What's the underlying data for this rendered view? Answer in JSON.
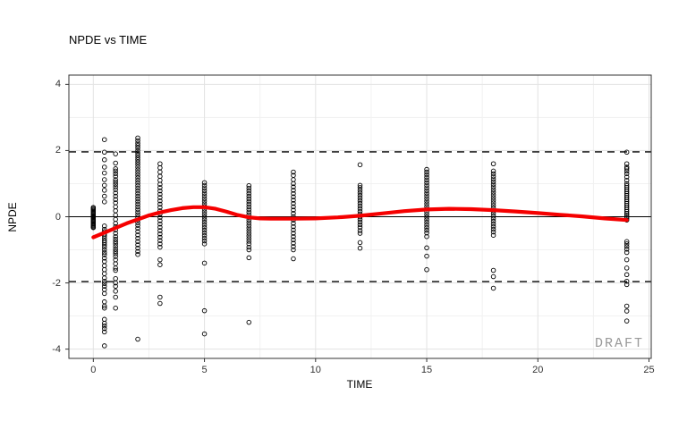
{
  "chart_data": {
    "type": "scatter",
    "title": "NPDE vs TIME",
    "xlabel": "TIME",
    "ylabel": "NPDE",
    "watermark": "DRAFT",
    "legend": "none",
    "grid": "on",
    "xlim": [
      -1.1,
      25.1
    ],
    "ylim": [
      -4.28,
      4.28
    ],
    "x_ticks": [
      0,
      5,
      10,
      15,
      20,
      25
    ],
    "y_ticks": [
      -4,
      -2,
      0,
      2,
      4
    ],
    "x_minor": [
      2.5,
      7.5,
      12.5,
      17.5,
      22.5
    ],
    "y_minor": [
      -3,
      -1,
      1,
      3
    ],
    "reference_lines": {
      "zero": 0,
      "upper_dashed": 1.96,
      "lower_dashed": -1.96
    },
    "colors": {
      "point": "#000000",
      "smooth_line": "#f50000",
      "reference_line": "#000000",
      "grid_major": "#e3e3e3",
      "grid_minor": "#f1f1f1",
      "panel_border": "#333333",
      "panel_bg": "#ffffff",
      "tick_text": "#333333",
      "watermark_text": "#999999"
    },
    "scatter_groups": [
      {
        "t": 0,
        "values": [
          0.28,
          0.25,
          0.22,
          0.19,
          0.16,
          0.13,
          0.1,
          0.07,
          0.04,
          0.02,
          0.0,
          -0.02,
          -0.04,
          -0.07,
          -0.1,
          -0.13,
          -0.16,
          -0.19,
          -0.22,
          -0.25,
          -0.28,
          -0.31,
          -0.33
        ]
      },
      {
        "t": 0.5,
        "values": [
          2.33,
          1.95,
          1.72,
          1.5,
          1.32,
          1.12,
          0.95,
          0.8,
          0.62,
          0.45,
          -0.28,
          -0.38,
          -0.45,
          -0.52,
          -0.58,
          -0.65,
          -0.72,
          -0.78,
          -0.85,
          -0.92,
          -1.0,
          -1.08,
          -1.15,
          -1.25,
          -1.35,
          -1.48,
          -1.6,
          -1.72,
          -1.85,
          -1.95,
          -2.02,
          -2.1,
          -2.2,
          -2.32,
          -2.57,
          -2.7,
          -2.76,
          -3.1,
          -3.22,
          -3.3,
          -3.38,
          -3.48,
          -3.9
        ]
      },
      {
        "t": 1,
        "values": [
          1.9,
          1.62,
          1.45,
          1.38,
          1.3,
          1.22,
          1.12,
          1.05,
          0.98,
          0.9,
          0.82,
          0.72,
          0.62,
          0.52,
          0.42,
          0.3,
          0.18,
          0.05,
          -0.08,
          -0.2,
          -0.3,
          -0.4,
          -0.5,
          -0.6,
          -0.68,
          -0.75,
          -0.82,
          -0.9,
          -0.98,
          -1.05,
          -1.12,
          -1.2,
          -1.3,
          -1.42,
          -1.55,
          -1.62,
          -1.87,
          -2.0,
          -2.1,
          -2.25,
          -2.43,
          -2.76
        ]
      },
      {
        "t": 2,
        "values": [
          2.38,
          2.3,
          2.22,
          2.15,
          2.08,
          2.0,
          1.93,
          1.86,
          1.79,
          1.72,
          1.65,
          1.58,
          1.5,
          1.42,
          1.34,
          1.26,
          1.18,
          1.1,
          1.02,
          0.94,
          0.86,
          0.78,
          0.7,
          0.62,
          0.54,
          0.46,
          0.38,
          0.3,
          0.22,
          0.14,
          0.06,
          -0.02,
          -0.1,
          -0.18,
          -0.26,
          -0.35,
          -0.45,
          -0.55,
          -0.65,
          -0.75,
          -0.85,
          -0.95,
          -1.05,
          -1.14,
          -3.7
        ]
      },
      {
        "t": 3,
        "values": [
          1.6,
          1.48,
          1.35,
          1.22,
          1.1,
          0.98,
          0.88,
          0.78,
          0.68,
          0.58,
          0.48,
          0.38,
          0.28,
          0.18,
          0.08,
          -0.02,
          -0.12,
          -0.22,
          -0.32,
          -0.42,
          -0.52,
          -0.62,
          -0.72,
          -0.82,
          -0.92,
          -1.3,
          -1.45,
          -2.43,
          -2.62
        ]
      },
      {
        "t": 5,
        "values": [
          1.03,
          0.95,
          0.87,
          0.79,
          0.71,
          0.63,
          0.55,
          0.47,
          0.39,
          0.31,
          0.23,
          0.15,
          0.07,
          -0.01,
          -0.09,
          -0.17,
          -0.25,
          -0.33,
          -0.41,
          -0.49,
          -0.57,
          -0.65,
          -0.73,
          -0.82,
          -1.4,
          -2.84,
          -3.54
        ]
      },
      {
        "t": 7,
        "values": [
          0.94,
          0.86,
          0.78,
          0.7,
          0.62,
          0.54,
          0.46,
          0.38,
          0.3,
          0.22,
          0.14,
          0.06,
          -0.02,
          -0.1,
          -0.18,
          -0.26,
          -0.34,
          -0.42,
          -0.5,
          -0.58,
          -0.66,
          -0.74,
          -0.82,
          -0.92,
          -1.0,
          -1.24,
          -3.19
        ]
      },
      {
        "t": 9,
        "values": [
          1.35,
          1.25,
          1.12,
          1.0,
          0.9,
          0.8,
          0.7,
          0.6,
          0.5,
          0.4,
          0.3,
          0.2,
          0.1,
          0.0,
          -0.1,
          -0.2,
          -0.3,
          -0.4,
          -0.5,
          -0.6,
          -0.7,
          -0.8,
          -0.9,
          -1.0,
          -1.27
        ]
      },
      {
        "t": 12,
        "values": [
          1.57,
          0.95,
          0.88,
          0.8,
          0.72,
          0.64,
          0.56,
          0.48,
          0.4,
          0.32,
          0.24,
          0.16,
          0.08,
          0.0,
          -0.08,
          -0.16,
          -0.24,
          -0.32,
          -0.42,
          -0.5,
          -0.78,
          -0.95
        ]
      },
      {
        "t": 15,
        "values": [
          1.43,
          1.35,
          1.27,
          1.19,
          1.11,
          1.03,
          0.95,
          0.87,
          0.79,
          0.71,
          0.63,
          0.55,
          0.47,
          0.39,
          0.31,
          0.23,
          0.15,
          0.07,
          -0.01,
          -0.09,
          -0.17,
          -0.25,
          -0.33,
          -0.41,
          -0.49,
          -0.6,
          -0.94,
          -1.19,
          -1.6
        ]
      },
      {
        "t": 18,
        "values": [
          1.6,
          1.38,
          1.3,
          1.22,
          1.14,
          1.06,
          0.98,
          0.9,
          0.82,
          0.74,
          0.66,
          0.58,
          0.5,
          0.42,
          0.34,
          0.26,
          0.18,
          0.1,
          0.02,
          -0.06,
          -0.14,
          -0.22,
          -0.3,
          -0.38,
          -0.46,
          -0.56,
          -1.62,
          -1.81,
          -2.16
        ]
      },
      {
        "t": 24,
        "values": [
          1.95,
          1.6,
          1.5,
          1.45,
          1.38,
          1.3,
          1.2,
          1.1,
          1.0,
          0.94,
          0.88,
          0.82,
          0.76,
          0.7,
          0.64,
          0.58,
          0.52,
          0.46,
          0.4,
          0.34,
          0.28,
          0.22,
          0.16,
          0.1,
          0.05,
          0.0,
          -0.05,
          -0.1,
          -0.75,
          -0.82,
          -0.9,
          -0.98,
          -1.08,
          -1.3,
          -1.55,
          -1.75,
          -1.95,
          -2.05,
          -2.7,
          -2.85,
          -3.15
        ]
      }
    ],
    "smooth_line": [
      [
        0,
        -0.62
      ],
      [
        0.5,
        -0.48
      ],
      [
        1,
        -0.34
      ],
      [
        1.5,
        -0.2
      ],
      [
        2,
        -0.08
      ],
      [
        2.5,
        0.04
      ],
      [
        3,
        0.13
      ],
      [
        3.5,
        0.2
      ],
      [
        4,
        0.26
      ],
      [
        4.5,
        0.29
      ],
      [
        5,
        0.29
      ],
      [
        5.5,
        0.24
      ],
      [
        6,
        0.15
      ],
      [
        6.5,
        0.05
      ],
      [
        7,
        -0.02
      ],
      [
        7.5,
        -0.05
      ],
      [
        8,
        -0.06
      ],
      [
        9,
        -0.06
      ],
      [
        10,
        -0.05
      ],
      [
        11,
        -0.02
      ],
      [
        12,
        0.03
      ],
      [
        13,
        0.1
      ],
      [
        14,
        0.17
      ],
      [
        15,
        0.22
      ],
      [
        16,
        0.24
      ],
      [
        17,
        0.23
      ],
      [
        18,
        0.2
      ],
      [
        19,
        0.16
      ],
      [
        20,
        0.11
      ],
      [
        21,
        0.06
      ],
      [
        22,
        0.01
      ],
      [
        23,
        -0.05
      ],
      [
        24,
        -0.1
      ]
    ]
  }
}
